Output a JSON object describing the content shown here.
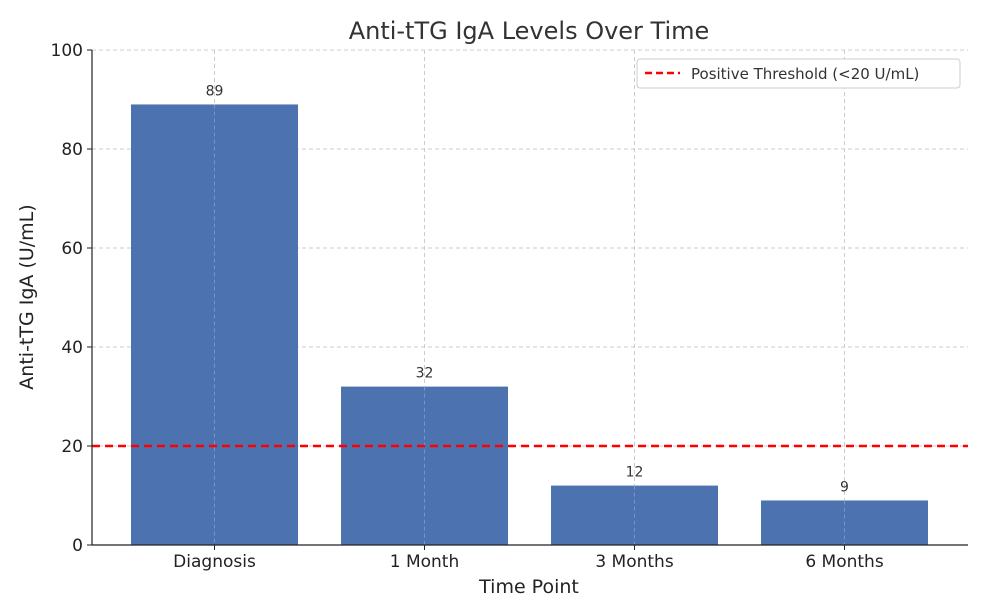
{
  "chart_data": {
    "type": "bar",
    "title": "Anti-tTG IgA Levels Over Time",
    "xlabel": "Time Point",
    "ylabel": "Anti-tTG IgA (U/mL)",
    "categories": [
      "Diagnosis",
      "1 Month",
      "3 Months",
      "6 Months"
    ],
    "values": [
      89,
      32,
      12,
      9
    ],
    "data_labels": [
      "89",
      "32",
      "12",
      "9"
    ],
    "ylim": [
      0,
      100
    ],
    "yticks": [
      0,
      20,
      40,
      60,
      80,
      100
    ],
    "grid": true,
    "bar_color": "#4c72b0",
    "reference_line": {
      "value": 20,
      "label": "Positive Threshold (<20 U/mL)",
      "color": "#ff0000",
      "style": "dashed"
    },
    "legend_position": "top-right"
  }
}
